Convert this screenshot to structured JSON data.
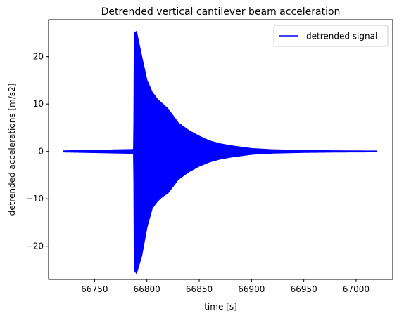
{
  "chart_data": {
    "type": "line",
    "title": "Detrended vertical cantilever beam acceleration",
    "xlabel": "time [s]",
    "ylabel": "detrended accelerations [m/s2]",
    "xlim": [
      66706,
      67035
    ],
    "ylim": [
      -27.0,
      27.8
    ],
    "xticks": [
      66750,
      66800,
      66850,
      66900,
      66950,
      67000
    ],
    "xtick_labels": [
      "66750",
      "66800",
      "66850",
      "66900",
      "66950",
      "67000"
    ],
    "yticks": [
      -20,
      -10,
      0,
      10,
      20
    ],
    "ytick_labels": [
      "−20",
      "−10",
      "0",
      "10",
      "20"
    ],
    "grid": false,
    "legend": {
      "position": "top-right",
      "entries": [
        "detrended signal"
      ]
    },
    "series": [
      {
        "name": "detrended signal",
        "color": "#0000ff",
        "style": "dense-oscillation-envelope",
        "x_start": 66720,
        "x_end": 67020,
        "impulse_time": 66788,
        "envelope": {
          "x": [
            66720,
            66787.5,
            66788,
            66790,
            66795,
            66800,
            66805,
            66810,
            66815,
            66820,
            66830,
            66840,
            66850,
            66860,
            66870,
            66880,
            66890,
            66900,
            66920,
            66950,
            66980,
            67000,
            67020
          ],
          "upper": [
            0.1,
            0.4,
            25.0,
            25.3,
            20.0,
            15.0,
            12.5,
            11.0,
            10.0,
            9.0,
            6.0,
            4.4,
            3.2,
            2.2,
            1.6,
            1.2,
            0.9,
            0.6,
            0.35,
            0.2,
            0.12,
            0.1,
            0.08
          ],
          "lower": [
            -0.1,
            -0.4,
            -25.0,
            -25.7,
            -22.0,
            -16.0,
            -12.0,
            -10.5,
            -9.5,
            -8.8,
            -5.9,
            -4.3,
            -3.1,
            -2.2,
            -1.6,
            -1.2,
            -0.9,
            -0.6,
            -0.35,
            -0.2,
            -0.12,
            -0.1,
            -0.08
          ]
        }
      }
    ]
  }
}
